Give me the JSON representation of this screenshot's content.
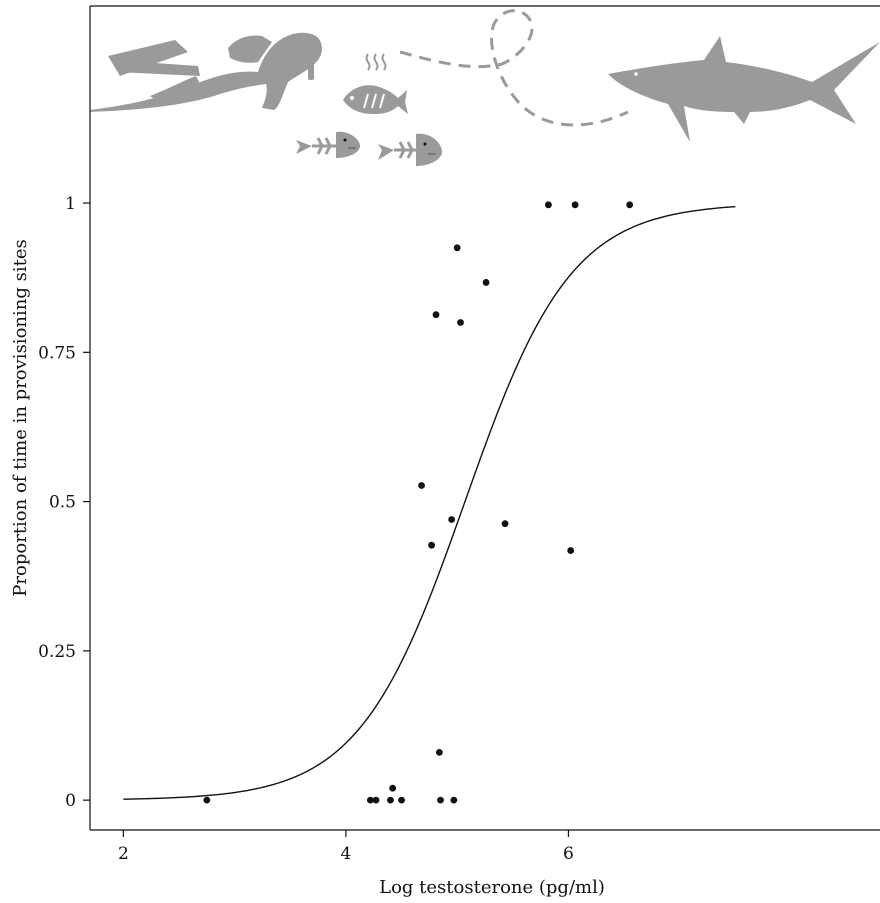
{
  "chart_data": {
    "type": "scatter",
    "xlabel": "Log testosterone (pg/ml)",
    "ylabel": "Proportion of time in provisioning sites",
    "xlim": [
      1.7,
      8.8
    ],
    "ylim": [
      -0.05,
      1.33
    ],
    "x_ticks": [
      2,
      4,
      6
    ],
    "y_ticks": [
      0,
      0.25,
      0.5,
      0.75,
      1
    ],
    "x_tick_labels": [
      "2",
      "4",
      "6"
    ],
    "y_tick_labels": [
      "0",
      "0.25",
      "0.5",
      "0.75",
      "1"
    ],
    "grid": false,
    "legend": "none",
    "points": [
      {
        "x": 2.75,
        "y": 0.0
      },
      {
        "x": 4.22,
        "y": 0.0
      },
      {
        "x": 4.27,
        "y": 0.0
      },
      {
        "x": 4.4,
        "y": 0.0
      },
      {
        "x": 4.42,
        "y": 0.02
      },
      {
        "x": 4.5,
        "y": 0.0
      },
      {
        "x": 4.84,
        "y": 0.08
      },
      {
        "x": 4.85,
        "y": 0.0
      },
      {
        "x": 4.97,
        "y": 0.0
      },
      {
        "x": 4.68,
        "y": 0.527
      },
      {
        "x": 4.77,
        "y": 0.427
      },
      {
        "x": 4.95,
        "y": 0.47
      },
      {
        "x": 5.43,
        "y": 0.463
      },
      {
        "x": 6.02,
        "y": 0.418
      },
      {
        "x": 4.81,
        "y": 0.813
      },
      {
        "x": 5.03,
        "y": 0.8
      },
      {
        "x": 5.0,
        "y": 0.925
      },
      {
        "x": 5.26,
        "y": 0.867
      },
      {
        "x": 5.82,
        "y": 0.997
      },
      {
        "x": 6.06,
        "y": 0.997
      },
      {
        "x": 6.55,
        "y": 0.997
      }
    ],
    "fit_curve": {
      "type": "logistic",
      "midpoint": 5.07,
      "slope": 2.1,
      "x_range": [
        2.0,
        7.5
      ]
    },
    "point_color": "#111111",
    "curve_color": "#111111",
    "silhouette_color": "#9a9a9a"
  },
  "illustrations": {
    "icons": [
      "diver-icon",
      "cooked-fish-icon",
      "fish-bones-icon",
      "fish-bones-icon",
      "dashed-swim-path-icon",
      "shark-icon"
    ]
  }
}
